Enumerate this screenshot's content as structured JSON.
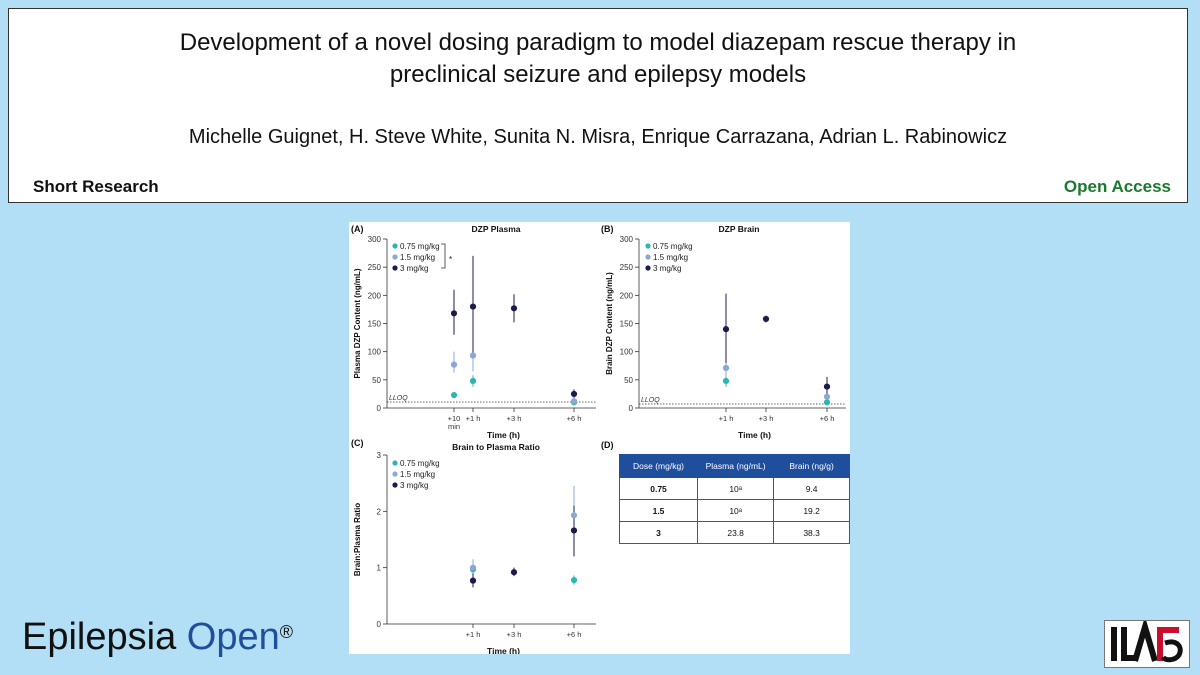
{
  "paper": {
    "title_line1": "Development of a novel dosing paradigm to model diazepam rescue therapy in",
    "title_line2": "preclinical seizure and epilepsy models",
    "authors": "Michelle Guignet, H. Steve White, Sunita N. Misra, Enrique Carrazana, Adrian L. Rabinowicz",
    "article_type": "Short Research",
    "access": "Open Access",
    "access_color": "#1a7a2e"
  },
  "journal": {
    "name_part1": "Epilepsia",
    "name_part2": "Open",
    "registered": "®"
  },
  "logo": {
    "text": "ILAE"
  },
  "legend": [
    "0.75 mg/kg",
    "1.5 mg/kg",
    "3 mg/kg"
  ],
  "colors": {
    "low": "#2bb6b0",
    "mid": "#8aa8d4",
    "high": "#1c1c4c",
    "table_header": "#1f4e9c"
  },
  "chart_data": [
    {
      "panel": "(A)",
      "type": "scatter",
      "title": "DZP Plasma",
      "xlabel": "Time (h)",
      "ylabel": "Plasma DZP Content (ng/mL)",
      "categories": [
        "+10 min",
        "+1 h",
        "+3 h",
        "+6 h"
      ],
      "ylim": [
        0,
        300
      ],
      "yticks": [
        0,
        50,
        100,
        150,
        200,
        250,
        300
      ],
      "annotation": "*",
      "lloq_label": "LLOQ",
      "series": [
        {
          "name": "0.75 mg/kg",
          "points": [
            {
              "x": "+10 min",
              "y": 23,
              "lo": 23,
              "hi": 23
            },
            {
              "x": "+1 h",
              "y": 48,
              "lo": 38,
              "hi": 58
            },
            {
              "x": "+6 h",
              "y": 10,
              "lo": 10,
              "hi": 10
            }
          ]
        },
        {
          "name": "1.5 mg/kg",
          "points": [
            {
              "x": "+10 min",
              "y": 77,
              "lo": 63,
              "hi": 100
            },
            {
              "x": "+1 h",
              "y": 93,
              "lo": 65,
              "hi": 122
            },
            {
              "x": "+6 h",
              "y": 12,
              "lo": 10,
              "hi": 15
            }
          ]
        },
        {
          "name": "3 mg/kg",
          "points": [
            {
              "x": "+10 min",
              "y": 168,
              "lo": 130,
              "hi": 210
            },
            {
              "x": "+1 h",
              "y": 180,
              "lo": 90,
              "hi": 270
            },
            {
              "x": "+3 h",
              "y": 177,
              "lo": 152,
              "hi": 202
            },
            {
              "x": "+6 h",
              "y": 25,
              "lo": 18,
              "hi": 33
            }
          ]
        }
      ]
    },
    {
      "panel": "(B)",
      "type": "scatter",
      "title": "DZP Brain",
      "xlabel": "Time (h)",
      "ylabel": "Brain DZP Content (ng/mL)",
      "categories": [
        "+1 h",
        "+3 h",
        "+6 h"
      ],
      "ylim": [
        0,
        300
      ],
      "yticks": [
        0,
        50,
        100,
        150,
        200,
        250,
        300
      ],
      "lloq_label": "LLOQ",
      "series": [
        {
          "name": "0.75 mg/kg",
          "points": [
            {
              "x": "+1 h",
              "y": 48,
              "lo": 38,
              "hi": 58
            },
            {
              "x": "+6 h",
              "y": 10,
              "lo": 8,
              "hi": 12
            }
          ]
        },
        {
          "name": "1.5 mg/kg",
          "points": [
            {
              "x": "+1 h",
              "y": 71,
              "lo": 55,
              "hi": 90
            },
            {
              "x": "+6 h",
              "y": 20,
              "lo": 15,
              "hi": 25
            }
          ]
        },
        {
          "name": "3 mg/kg",
          "points": [
            {
              "x": "+1 h",
              "y": 140,
              "lo": 80,
              "hi": 203
            },
            {
              "x": "+3 h",
              "y": 158,
              "lo": 152,
              "hi": 164
            },
            {
              "x": "+6 h",
              "y": 38,
              "lo": 22,
              "hi": 55
            }
          ]
        }
      ]
    },
    {
      "panel": "(C)",
      "type": "scatter",
      "title": "Brain to Plasma Ratio",
      "xlabel": "Time (h)",
      "ylabel": "Brain:Plasma Ratio",
      "categories": [
        "+1 h",
        "+3 h",
        "+6 h"
      ],
      "ylim": [
        0,
        3
      ],
      "yticks": [
        0,
        1,
        2,
        3
      ],
      "series": [
        {
          "name": "0.75 mg/kg",
          "points": [
            {
              "x": "+1 h",
              "y": 0.97,
              "lo": 0.88,
              "hi": 1.06
            },
            {
              "x": "+6 h",
              "y": 0.78,
              "lo": 0.7,
              "hi": 0.86
            }
          ]
        },
        {
          "name": "1.5 mg/kg",
          "points": [
            {
              "x": "+1 h",
              "y": 1.0,
              "lo": 0.85,
              "hi": 1.15
            },
            {
              "x": "+6 h",
              "y": 1.93,
              "lo": 1.45,
              "hi": 2.45
            }
          ]
        },
        {
          "name": "3 mg/kg",
          "points": [
            {
              "x": "+1 h",
              "y": 0.77,
              "lo": 0.65,
              "hi": 0.9
            },
            {
              "x": "+3 h",
              "y": 0.92,
              "lo": 0.85,
              "hi": 1.0
            },
            {
              "x": "+6 h",
              "y": 1.66,
              "lo": 1.2,
              "hi": 2.1
            }
          ]
        }
      ]
    },
    {
      "panel": "(D)",
      "type": "table",
      "columns": [
        "Dose (mg/kg)",
        "Plasma (ng/mL)",
        "Brain (ng/g)"
      ],
      "rows": [
        [
          "0.75",
          "10ᵃ",
          "9.4"
        ],
        [
          "1.5",
          "10ᵃ",
          "19.2"
        ],
        [
          "3",
          "23.8",
          "38.3"
        ]
      ]
    }
  ]
}
